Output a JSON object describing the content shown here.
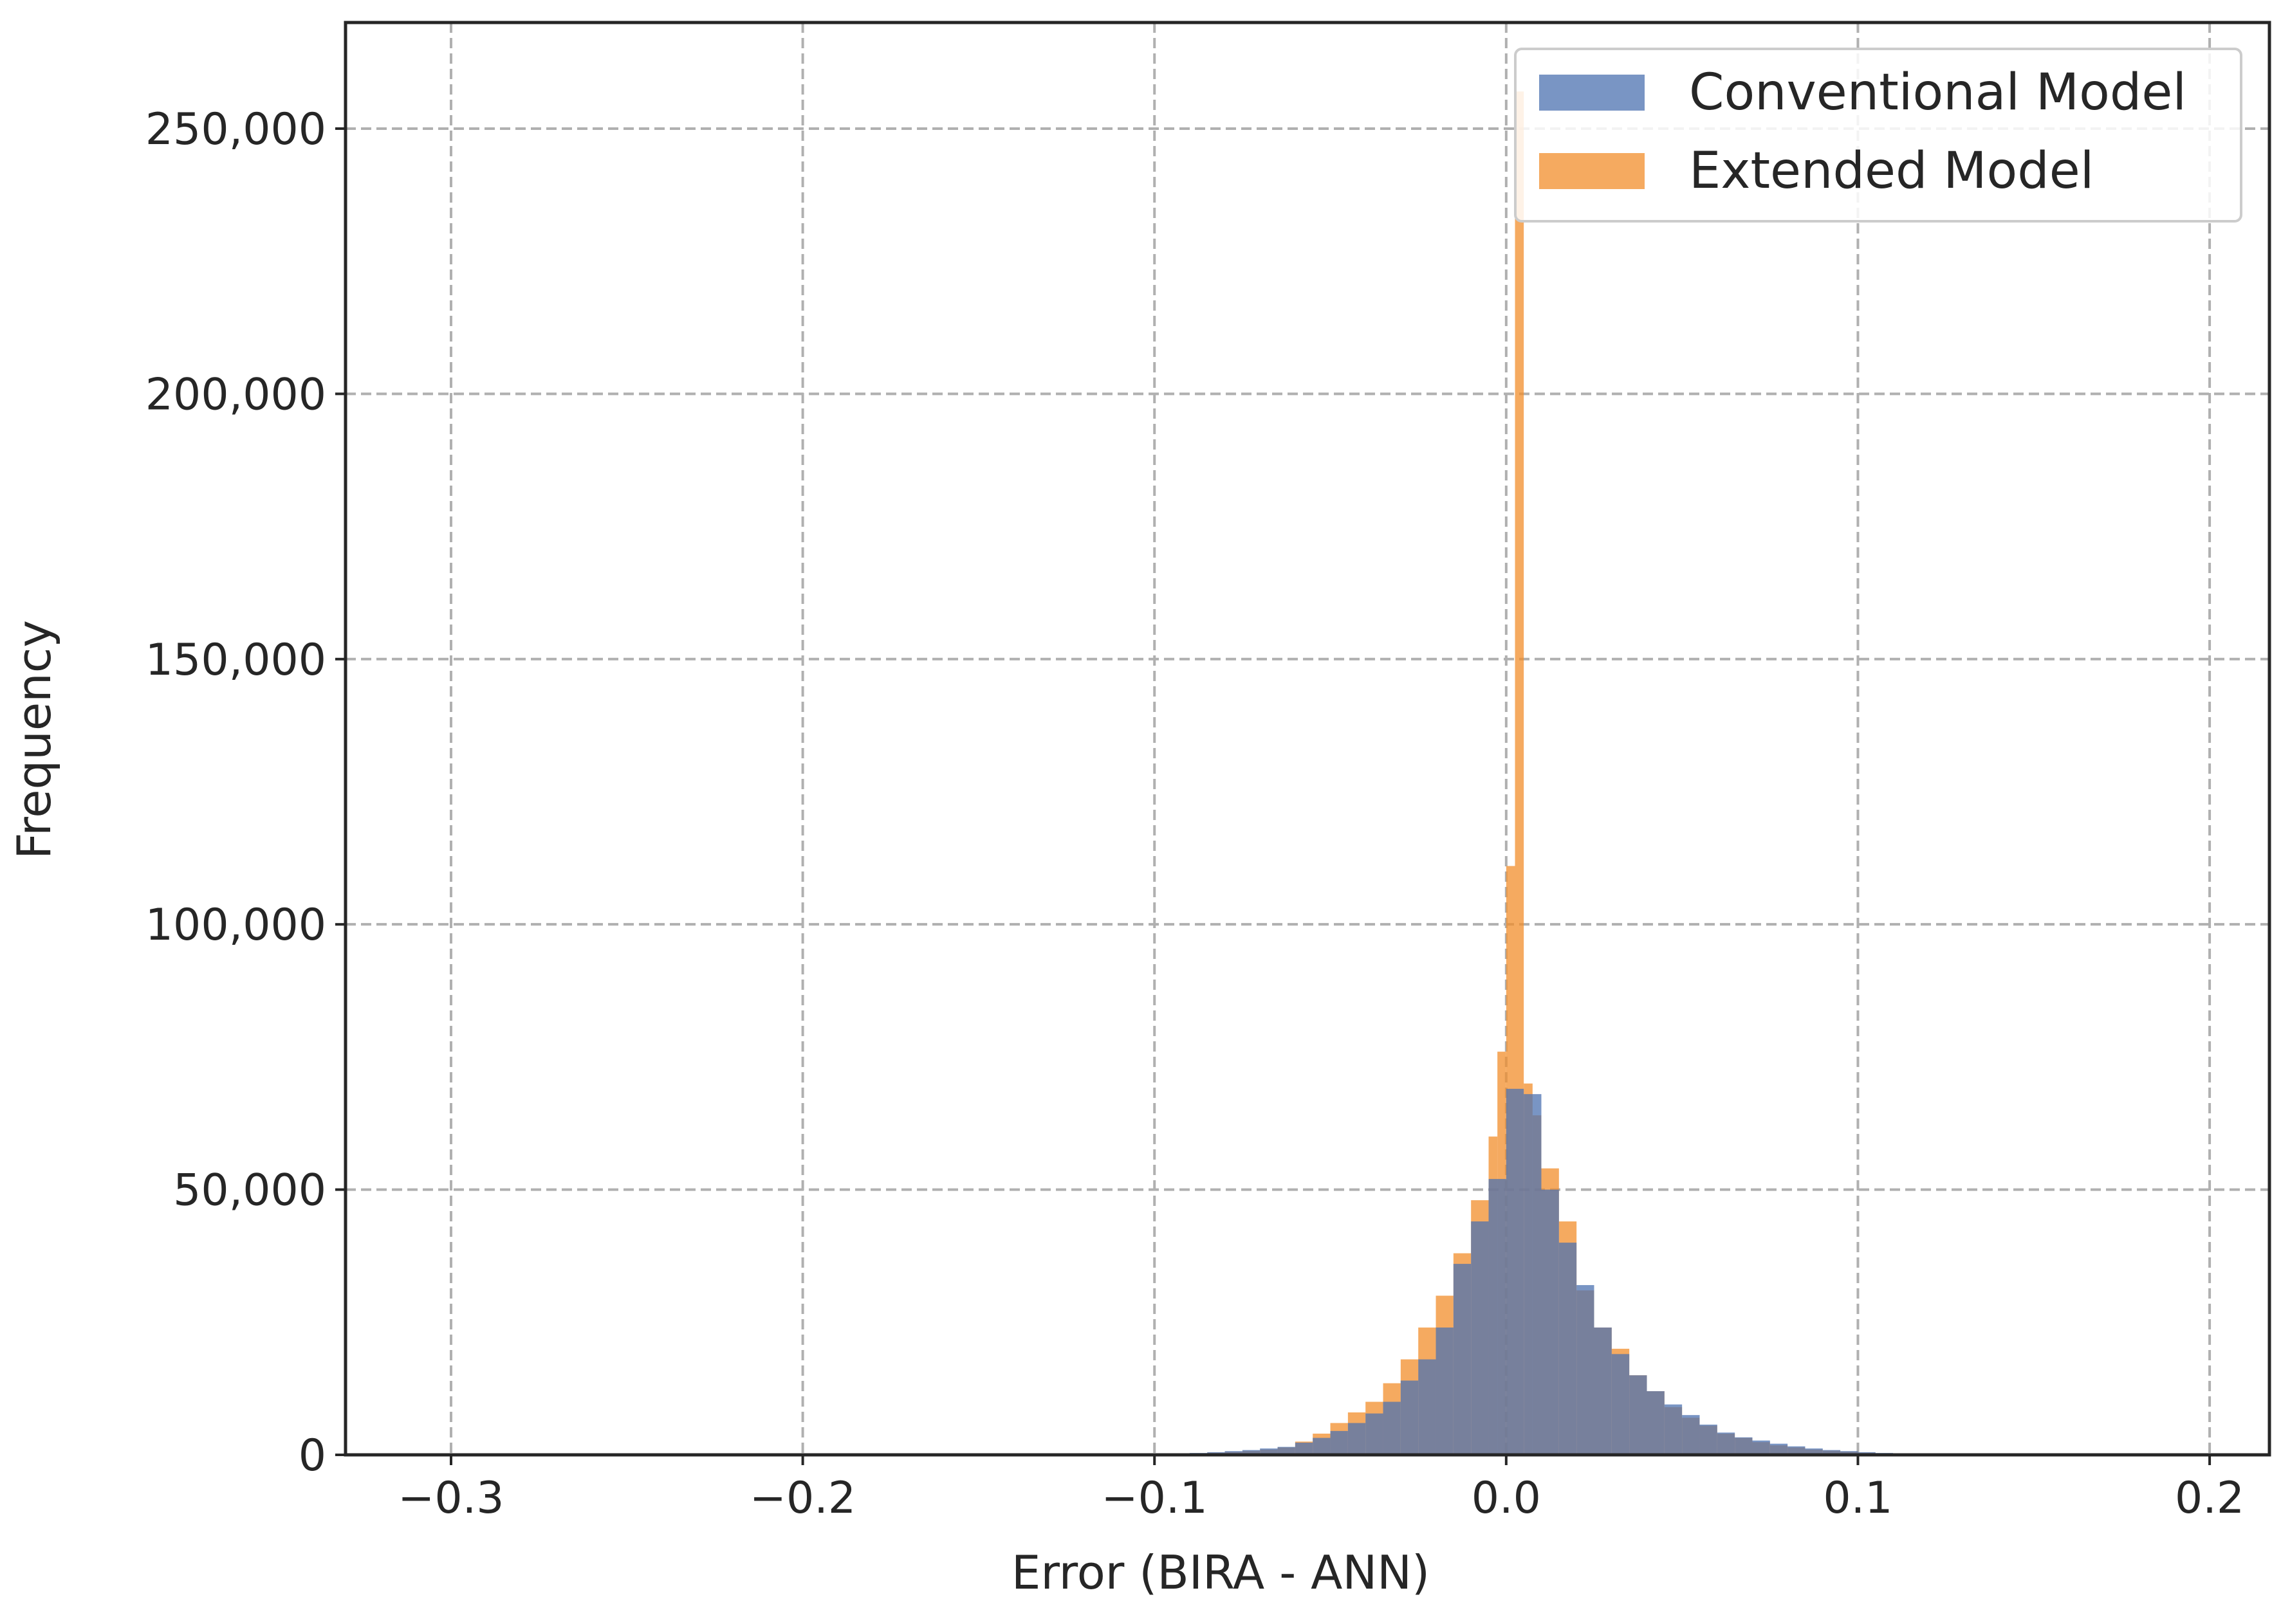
{
  "chart_data": {
    "type": "bar",
    "xlabel": "Error (BIRA - ANN)",
    "ylabel": "Frequency",
    "xlim": [
      -0.33,
      0.217
    ],
    "ylim": [
      0,
      270000
    ],
    "x_ticks": [
      -0.3,
      -0.2,
      -0.1,
      0.0,
      0.1,
      0.2
    ],
    "x_tick_labels": [
      "−0.3",
      "−0.2",
      "−0.1",
      "0.0",
      "0.1",
      "0.2"
    ],
    "y_ticks": [
      0,
      50000,
      100000,
      150000,
      200000,
      250000
    ],
    "y_tick_labels": [
      "0",
      "50,000",
      "100,000",
      "150,000",
      "200,000",
      "250,000"
    ],
    "grid": true,
    "legend_position": "top-right",
    "bin_width": 0.005,
    "series": [
      {
        "name": "Conventional Model",
        "color": "#4c72b0",
        "bins": [
          [
            -0.1,
            200
          ],
          [
            -0.095,
            250
          ],
          [
            -0.09,
            350
          ],
          [
            -0.085,
            500
          ],
          [
            -0.08,
            700
          ],
          [
            -0.075,
            900
          ],
          [
            -0.07,
            1200
          ],
          [
            -0.065,
            1500
          ],
          [
            -0.06,
            2300
          ],
          [
            -0.055,
            3200
          ],
          [
            -0.05,
            4500
          ],
          [
            -0.045,
            6000
          ],
          [
            -0.04,
            7800
          ],
          [
            -0.035,
            10000
          ],
          [
            -0.03,
            14000
          ],
          [
            -0.025,
            18000
          ],
          [
            -0.02,
            24000
          ],
          [
            -0.015,
            36000
          ],
          [
            -0.01,
            44000
          ],
          [
            -0.005,
            52000
          ],
          [
            0.0,
            69000
          ],
          [
            0.005,
            68000
          ],
          [
            0.01,
            50000
          ],
          [
            0.015,
            40000
          ],
          [
            0.02,
            32000
          ],
          [
            0.025,
            24000
          ],
          [
            0.03,
            19000
          ],
          [
            0.035,
            15000
          ],
          [
            0.04,
            12000
          ],
          [
            0.045,
            9500
          ],
          [
            0.05,
            7500
          ],
          [
            0.055,
            5700
          ],
          [
            0.06,
            4200
          ],
          [
            0.065,
            3300
          ],
          [
            0.07,
            2700
          ],
          [
            0.075,
            2100
          ],
          [
            0.08,
            1600
          ],
          [
            0.085,
            1200
          ],
          [
            0.09,
            900
          ],
          [
            0.095,
            700
          ],
          [
            0.1,
            500
          ],
          [
            0.105,
            350
          ],
          [
            0.11,
            250
          ],
          [
            0.115,
            200
          ],
          [
            0.12,
            150
          ]
        ]
      },
      {
        "name": "Extended Model",
        "color": "#f28e2b",
        "bins": [
          [
            -0.1,
            150
          ],
          [
            -0.095,
            200
          ],
          [
            -0.09,
            300
          ],
          [
            -0.085,
            400
          ],
          [
            -0.08,
            550
          ],
          [
            -0.075,
            750
          ],
          [
            -0.07,
            1000
          ],
          [
            -0.065,
            1400
          ],
          [
            -0.06,
            2500
          ],
          [
            -0.055,
            4000
          ],
          [
            -0.05,
            6000
          ],
          [
            -0.045,
            8000
          ],
          [
            -0.04,
            10000
          ],
          [
            -0.035,
            13500
          ],
          [
            -0.03,
            18000
          ],
          [
            -0.025,
            24000
          ],
          [
            -0.02,
            30000
          ],
          [
            -0.015,
            38000
          ],
          [
            -0.01,
            48000
          ],
          [
            -0.005,
            60000
          ],
          [
            -0.0025,
            76000
          ],
          [
            0.0,
            111000
          ],
          [
            0.0025,
            257000
          ],
          [
            0.005,
            70000
          ],
          [
            0.0075,
            64000
          ],
          [
            0.01,
            54000
          ],
          [
            0.015,
            44000
          ],
          [
            0.02,
            31000
          ],
          [
            0.025,
            24000
          ],
          [
            0.03,
            20000
          ],
          [
            0.035,
            15000
          ],
          [
            0.04,
            12000
          ],
          [
            0.045,
            9000
          ],
          [
            0.05,
            7000
          ],
          [
            0.055,
            5500
          ],
          [
            0.06,
            4000
          ],
          [
            0.065,
            3200
          ],
          [
            0.07,
            2400
          ],
          [
            0.075,
            1800
          ],
          [
            0.08,
            1400
          ],
          [
            0.085,
            1000
          ],
          [
            0.09,
            800
          ],
          [
            0.095,
            600
          ],
          [
            0.1,
            400
          ],
          [
            0.105,
            300
          ],
          [
            0.11,
            200
          ],
          [
            0.115,
            150
          ],
          [
            0.12,
            100
          ]
        ]
      }
    ]
  }
}
